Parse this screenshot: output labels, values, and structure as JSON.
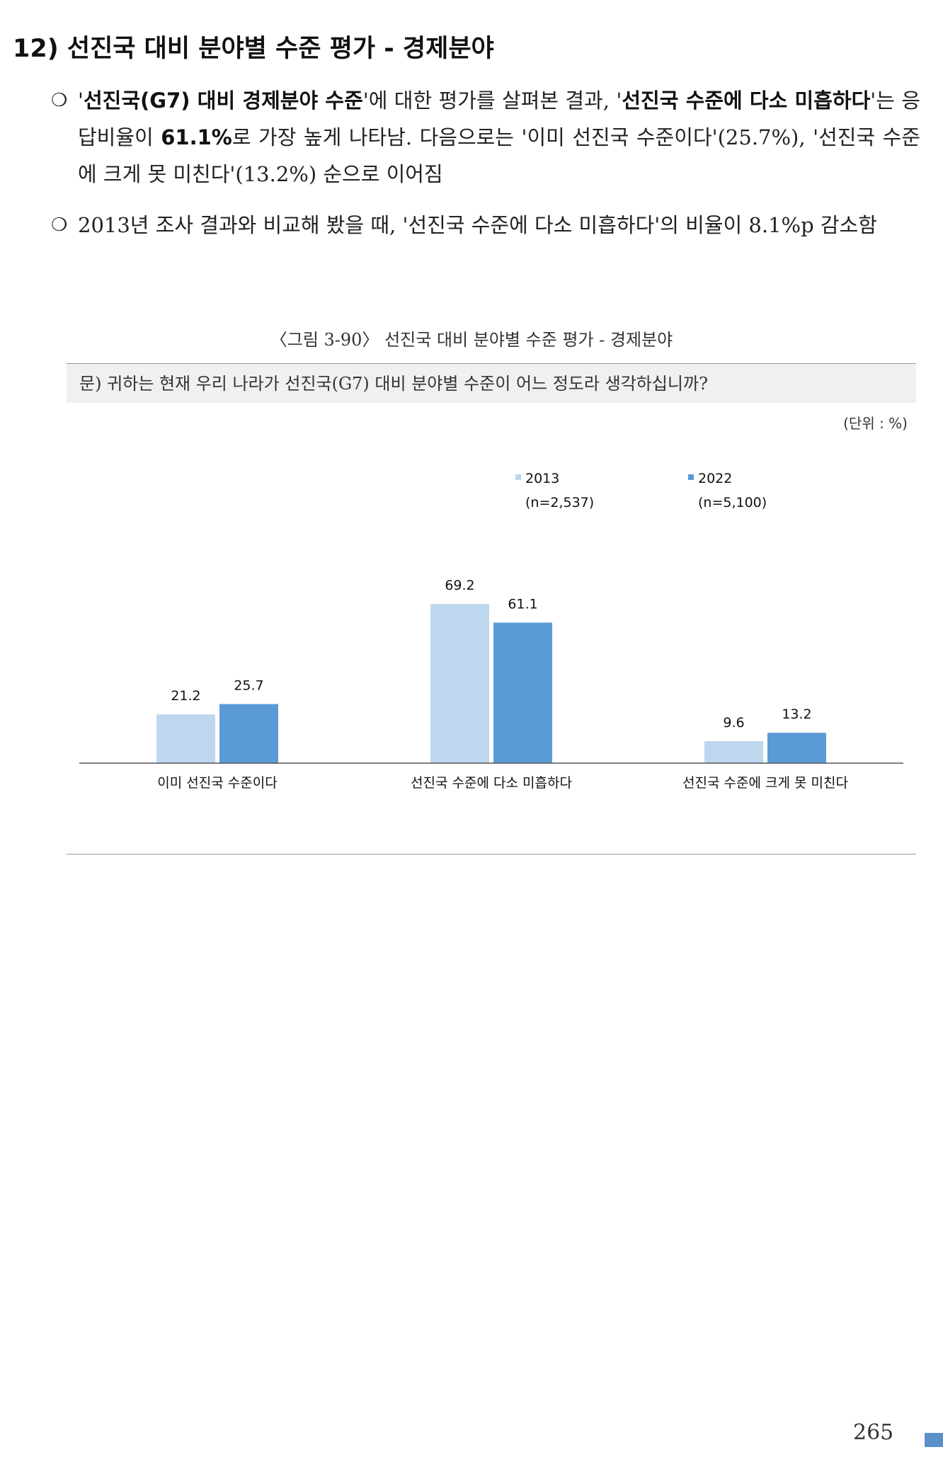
{
  "heading": "12) 선진국 대비 분야별 수준 평가 - 경제분야",
  "bullet_symbol": "❍",
  "paragraph1": {
    "q1": "'",
    "b1": "선진국(G7) 대비 경제분야 수준",
    "t1": "'에 대한 평가를 살펴본 결과, '",
    "b2": "선진국 수준에 다소 미흡하다",
    "t2": "'는 응답비율이 ",
    "b3": "61.1%",
    "t3": "로 가장 높게 나타남. 다음으로는 '이미 선진국 수준이다'(25.7%), '선진국 수준에 크게 못 미친다'(13.2%) 순으로 이어짐"
  },
  "paragraph2": "2013년 조사 결과와 비교해 봤을 때, '선진국 수준에 다소 미흡하다'의 비율이 8.1%p 감소함",
  "figure_title": "〈그림 3-90〉 선진국 대비 분야별 수준 평가 - 경제분야",
  "question": "문) 귀하는 현재 우리 나라가 선진국(G7) 대비 분야별 수준이 어느 정도라 생각하십니까?",
  "unit": "(단위 : %)",
  "page_number": "265",
  "colors": {
    "series_2013": "#bdd7ee",
    "series_2022": "#5b9bd5",
    "accent": "#5b8fc7"
  },
  "chart_data": {
    "type": "bar",
    "categories": [
      "이미 선진국 수준이다",
      "선진국 수준에 다소 미흡하다",
      "선진국 수준에 크게 못 미친다"
    ],
    "series": [
      {
        "name": "2013",
        "n_label": "(n=2,537)",
        "values": [
          21.2,
          69.2,
          9.6
        ],
        "color": "#bdd7ee"
      },
      {
        "name": "2022",
        "n_label": "(n=5,100)",
        "values": [
          25.7,
          61.1,
          13.2
        ],
        "color": "#5b9bd5"
      }
    ],
    "ylim": [
      0,
      80
    ],
    "grid": false,
    "legend_position": "top-right",
    "title": "",
    "xlabel": "",
    "ylabel": ""
  }
}
